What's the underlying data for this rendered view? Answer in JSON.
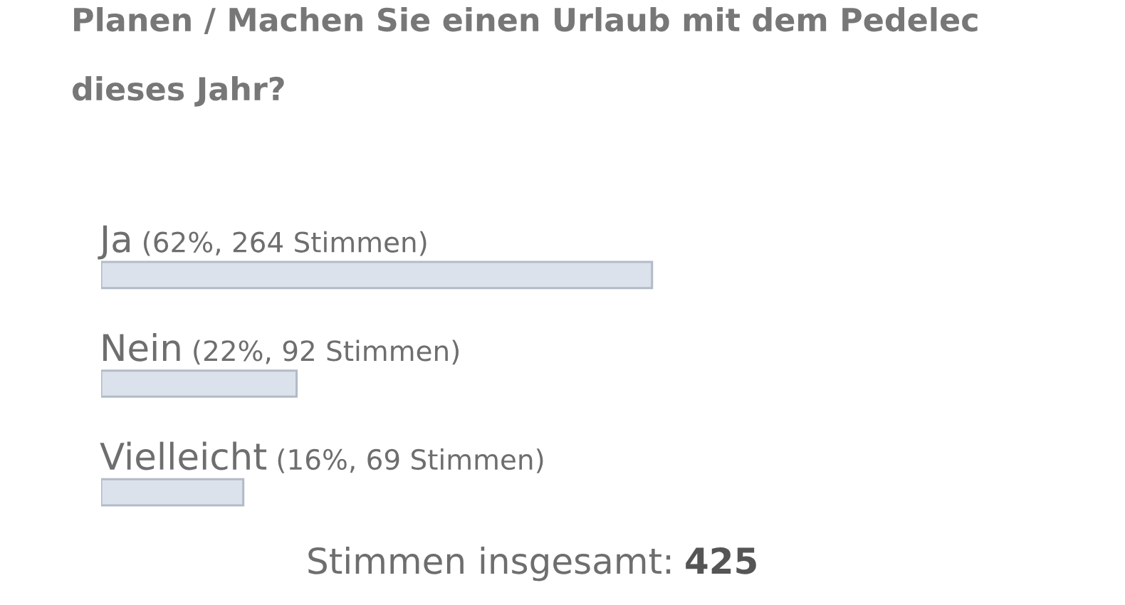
{
  "chart_data": {
    "type": "bar",
    "orientation": "horizontal",
    "title": "Planen / Machen Sie einen Urlaub mit dem Pedelec dieses Jahr?",
    "categories": [
      "Ja",
      "Nein",
      "Vielleicht"
    ],
    "values": [
      62,
      22,
      16
    ],
    "value_labels": [
      "(62%, 264 Stimmen)",
      "(22%, 92 Stimmen)",
      "(16%, 69 Stimmen)"
    ],
    "color": "#dbe2ec",
    "tick_labels": false,
    "grid": false,
    "annotations": [
      "Stimmen insgesamt:",
      "425"
    ]
  }
}
